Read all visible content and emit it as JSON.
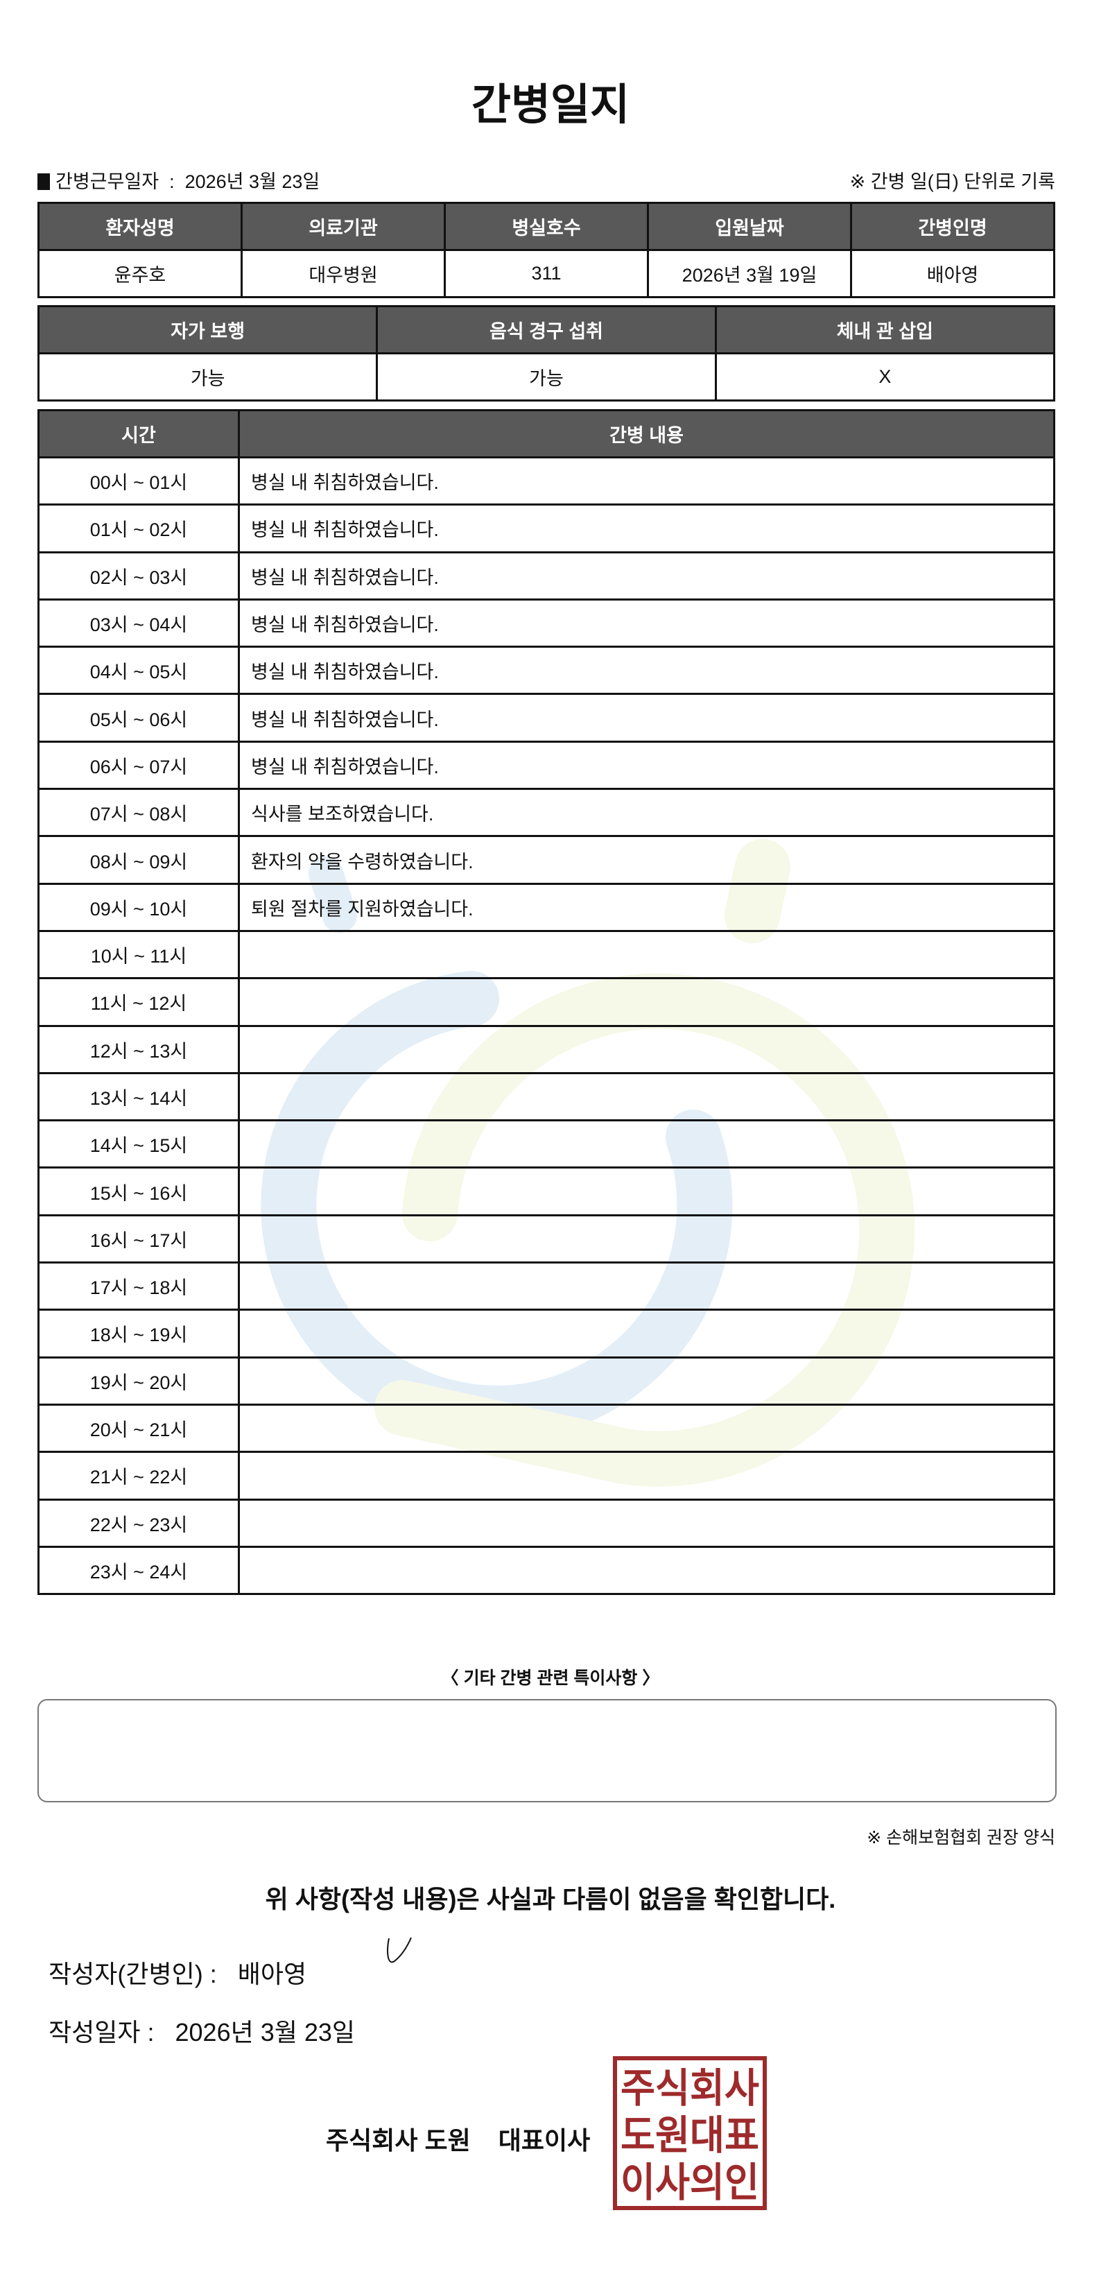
{
  "title": "간병일지",
  "work_date": {
    "label": "간병근무일자",
    "separator": ":",
    "value": "2026년 3월 23일"
  },
  "unit_note": "※ 간병 일(日) 단위로 기록",
  "info_table": {
    "headers": [
      "환자성명",
      "의료기관",
      "병실호수",
      "입원날짜",
      "간병인명"
    ],
    "values": [
      "윤주호",
      "대우병원",
      "311",
      "2026년 3월 19일",
      "배아영"
    ]
  },
  "status_table": {
    "headers": [
      "자가 보행",
      "음식 경구 섭취",
      "체내 관 삽입"
    ],
    "values": [
      "가능",
      "가능",
      "X"
    ]
  },
  "log_table": {
    "headers": [
      "시간",
      "간병 내용"
    ],
    "rows": [
      {
        "time": "00시 ~ 01시",
        "content": "병실 내 취침하였습니다."
      },
      {
        "time": "01시 ~ 02시",
        "content": "병실 내 취침하였습니다."
      },
      {
        "time": "02시 ~ 03시",
        "content": "병실 내 취침하였습니다."
      },
      {
        "time": "03시 ~ 04시",
        "content": "병실 내 취침하였습니다."
      },
      {
        "time": "04시 ~ 05시",
        "content": "병실 내 취침하였습니다."
      },
      {
        "time": "05시 ~ 06시",
        "content": "병실 내 취침하였습니다."
      },
      {
        "time": "06시 ~ 07시",
        "content": "병실 내 취침하였습니다."
      },
      {
        "time": "07시 ~ 08시",
        "content": "식사를 보조하였습니다."
      },
      {
        "time": "08시 ~ 09시",
        "content": "환자의 약을 수령하였습니다."
      },
      {
        "time": "09시 ~ 10시",
        "content": "퇴원 절차를 지원하였습니다."
      },
      {
        "time": "10시 ~ 11시",
        "content": ""
      },
      {
        "time": "11시 ~ 12시",
        "content": ""
      },
      {
        "time": "12시 ~ 13시",
        "content": ""
      },
      {
        "time": "13시 ~ 14시",
        "content": ""
      },
      {
        "time": "14시 ~ 15시",
        "content": ""
      },
      {
        "time": "15시 ~ 16시",
        "content": ""
      },
      {
        "time": "16시 ~ 17시",
        "content": ""
      },
      {
        "time": "17시 ~ 18시",
        "content": ""
      },
      {
        "time": "18시 ~ 19시",
        "content": ""
      },
      {
        "time": "19시 ~ 20시",
        "content": ""
      },
      {
        "time": "20시 ~ 21시",
        "content": ""
      },
      {
        "time": "21시 ~ 22시",
        "content": ""
      },
      {
        "time": "22시 ~ 23시",
        "content": ""
      },
      {
        "time": "23시 ~ 24시",
        "content": ""
      }
    ]
  },
  "notes": {
    "title": "〈 기타 간병 관련 특이사항 〉",
    "value": ""
  },
  "recommendation": "※ 손해보험협회 권장 양식",
  "confirmation": "위 사항(작성 내용)은 사실과 다름이 없음을 확인합니다.",
  "writer": {
    "label": "작성자(간병인) :",
    "value": "배아영"
  },
  "write_date": {
    "label": "작성일자 :",
    "value": "2026년 3월 23일"
  },
  "company": {
    "name": "주식회사 도원",
    "title": "대표이사"
  },
  "stamp": {
    "text": [
      "주식회사",
      "도원대표",
      "이사의인"
    ],
    "color": "#9e2a2b"
  },
  "colors": {
    "header_bg": "#595959",
    "watermark_blue": "#e3eef7",
    "watermark_yellow": "#f6f8e8"
  }
}
